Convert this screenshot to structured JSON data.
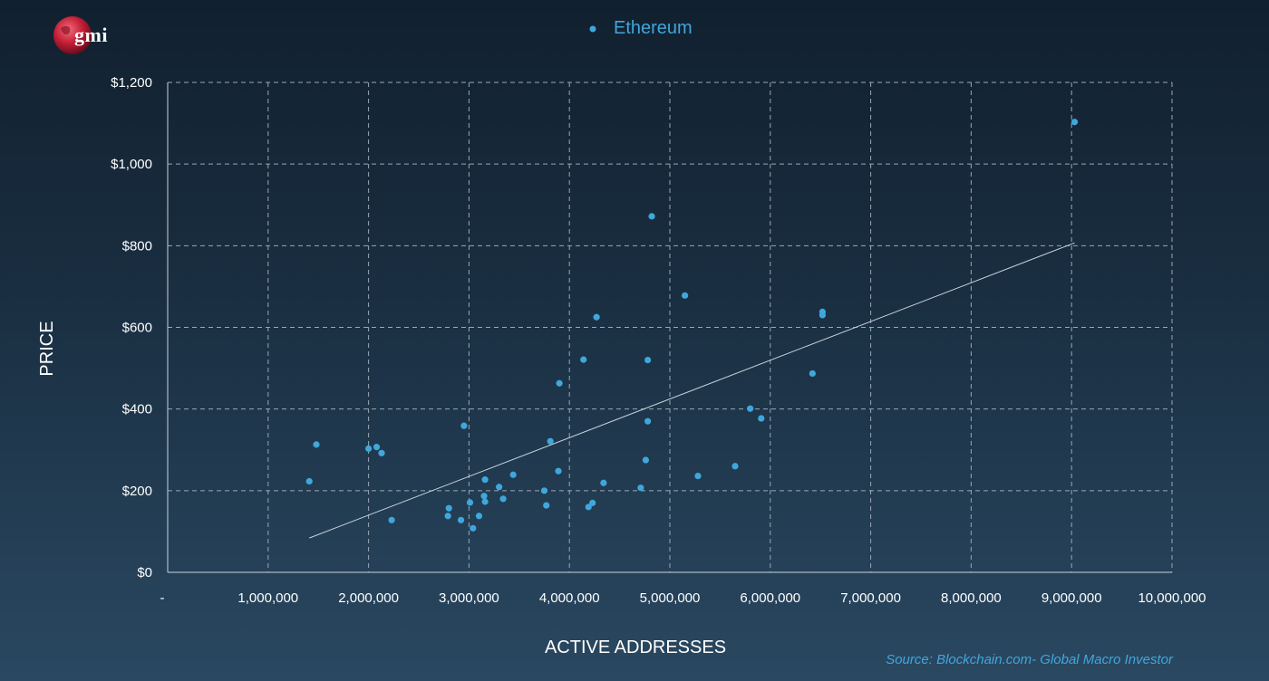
{
  "logo": {
    "text": "gmi"
  },
  "source": "Source: Blockchain.com- Global Macro Investor",
  "colors": {
    "accent": "#3fa7dc",
    "trendline": "#c8d4de",
    "grid": "#9aa7b3"
  },
  "chart_data": {
    "type": "scatter",
    "title": "",
    "xlabel": "ACTIVE ADDRESSES",
    "ylabel": "PRICE",
    "xlim": [
      0,
      10000000
    ],
    "ylim": [
      0,
      1200
    ],
    "grid": true,
    "legend": "top-center",
    "x_tick_labels": [
      "-",
      "1,000,000",
      "2,000,000",
      "3,000,000",
      "4,000,000",
      "5,000,000",
      "6,000,000",
      "7,000,000",
      "8,000,000",
      "9,000,000",
      "10,000,000"
    ],
    "y_tick_labels": [
      "$0",
      "$200",
      "$400",
      "$600",
      "$800",
      "$1,000",
      "$1,200"
    ],
    "series": [
      {
        "name": "Ethereum",
        "points": [
          {
            "x": 1410000,
            "y": 223
          },
          {
            "x": 1480000,
            "y": 313
          },
          {
            "x": 2000000,
            "y": 303
          },
          {
            "x": 2080000,
            "y": 307
          },
          {
            "x": 2130000,
            "y": 292
          },
          {
            "x": 2230000,
            "y": 128
          },
          {
            "x": 2790000,
            "y": 138
          },
          {
            "x": 2800000,
            "y": 157
          },
          {
            "x": 2920000,
            "y": 128
          },
          {
            "x": 2950000,
            "y": 359
          },
          {
            "x": 3010000,
            "y": 171
          },
          {
            "x": 3040000,
            "y": 108
          },
          {
            "x": 3100000,
            "y": 138
          },
          {
            "x": 3150000,
            "y": 187
          },
          {
            "x": 3160000,
            "y": 227
          },
          {
            "x": 3160000,
            "y": 173
          },
          {
            "x": 3300000,
            "y": 209
          },
          {
            "x": 3340000,
            "y": 180
          },
          {
            "x": 3440000,
            "y": 239
          },
          {
            "x": 3750000,
            "y": 200
          },
          {
            "x": 3770000,
            "y": 164
          },
          {
            "x": 3810000,
            "y": 321
          },
          {
            "x": 3890000,
            "y": 248
          },
          {
            "x": 3900000,
            "y": 463
          },
          {
            "x": 4140000,
            "y": 521
          },
          {
            "x": 4190000,
            "y": 160
          },
          {
            "x": 4230000,
            "y": 170
          },
          {
            "x": 4270000,
            "y": 625
          },
          {
            "x": 4340000,
            "y": 219
          },
          {
            "x": 4710000,
            "y": 207
          },
          {
            "x": 4760000,
            "y": 275
          },
          {
            "x": 4780000,
            "y": 520
          },
          {
            "x": 4780000,
            "y": 370
          },
          {
            "x": 4820000,
            "y": 872
          },
          {
            "x": 5150000,
            "y": 678
          },
          {
            "x": 5280000,
            "y": 236
          },
          {
            "x": 5650000,
            "y": 260
          },
          {
            "x": 5800000,
            "y": 401
          },
          {
            "x": 5910000,
            "y": 377
          },
          {
            "x": 6420000,
            "y": 487
          },
          {
            "x": 6520000,
            "y": 638
          },
          {
            "x": 6520000,
            "y": 630
          },
          {
            "x": 9030000,
            "y": 1103
          }
        ]
      }
    ],
    "trendline": {
      "x": [
        1410000,
        9030000
      ],
      "y": [
        84,
        807
      ]
    }
  }
}
